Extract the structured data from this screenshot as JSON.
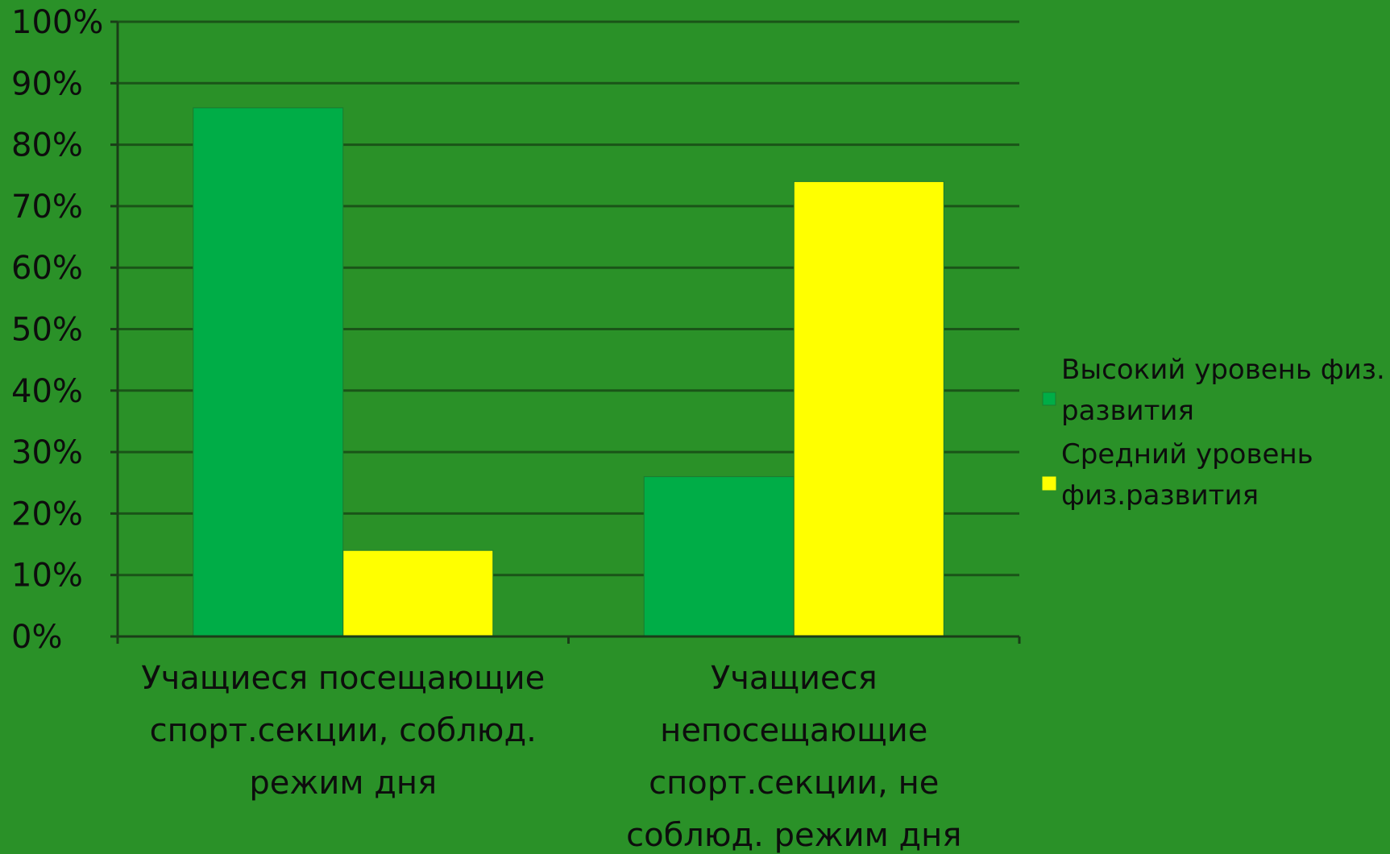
{
  "chart_data": {
    "type": "bar",
    "title": "",
    "xlabel": "",
    "ylabel": "",
    "ylim": [
      0,
      100
    ],
    "y_ticks": [
      "0%",
      "10%",
      "20%",
      "30%",
      "40%",
      "50%",
      "60%",
      "70%",
      "80%",
      "90%",
      "100%"
    ],
    "grid": true,
    "legend_position": "right",
    "categories": [
      [
        "Учащиеся посещающие",
        "спорт.секции, соблюд.",
        "режим дня"
      ],
      [
        "Учащиеся",
        "непосещающие",
        "спорт.секции, не",
        "соблюд. режим дня"
      ]
    ],
    "series": [
      {
        "name": [
          "Высокий уровень физ.",
          "развития"
        ],
        "values": [
          86,
          26
        ],
        "color": "#00ad47"
      },
      {
        "name": [
          "Средний уровень",
          "физ.развития"
        ],
        "values": [
          14,
          74
        ],
        "color": "#ffff00"
      }
    ],
    "colors": {
      "background": "#2a9128",
      "gridline": "#1a5418",
      "axis": "#1a3d18",
      "text": "#0d0d0d"
    }
  }
}
